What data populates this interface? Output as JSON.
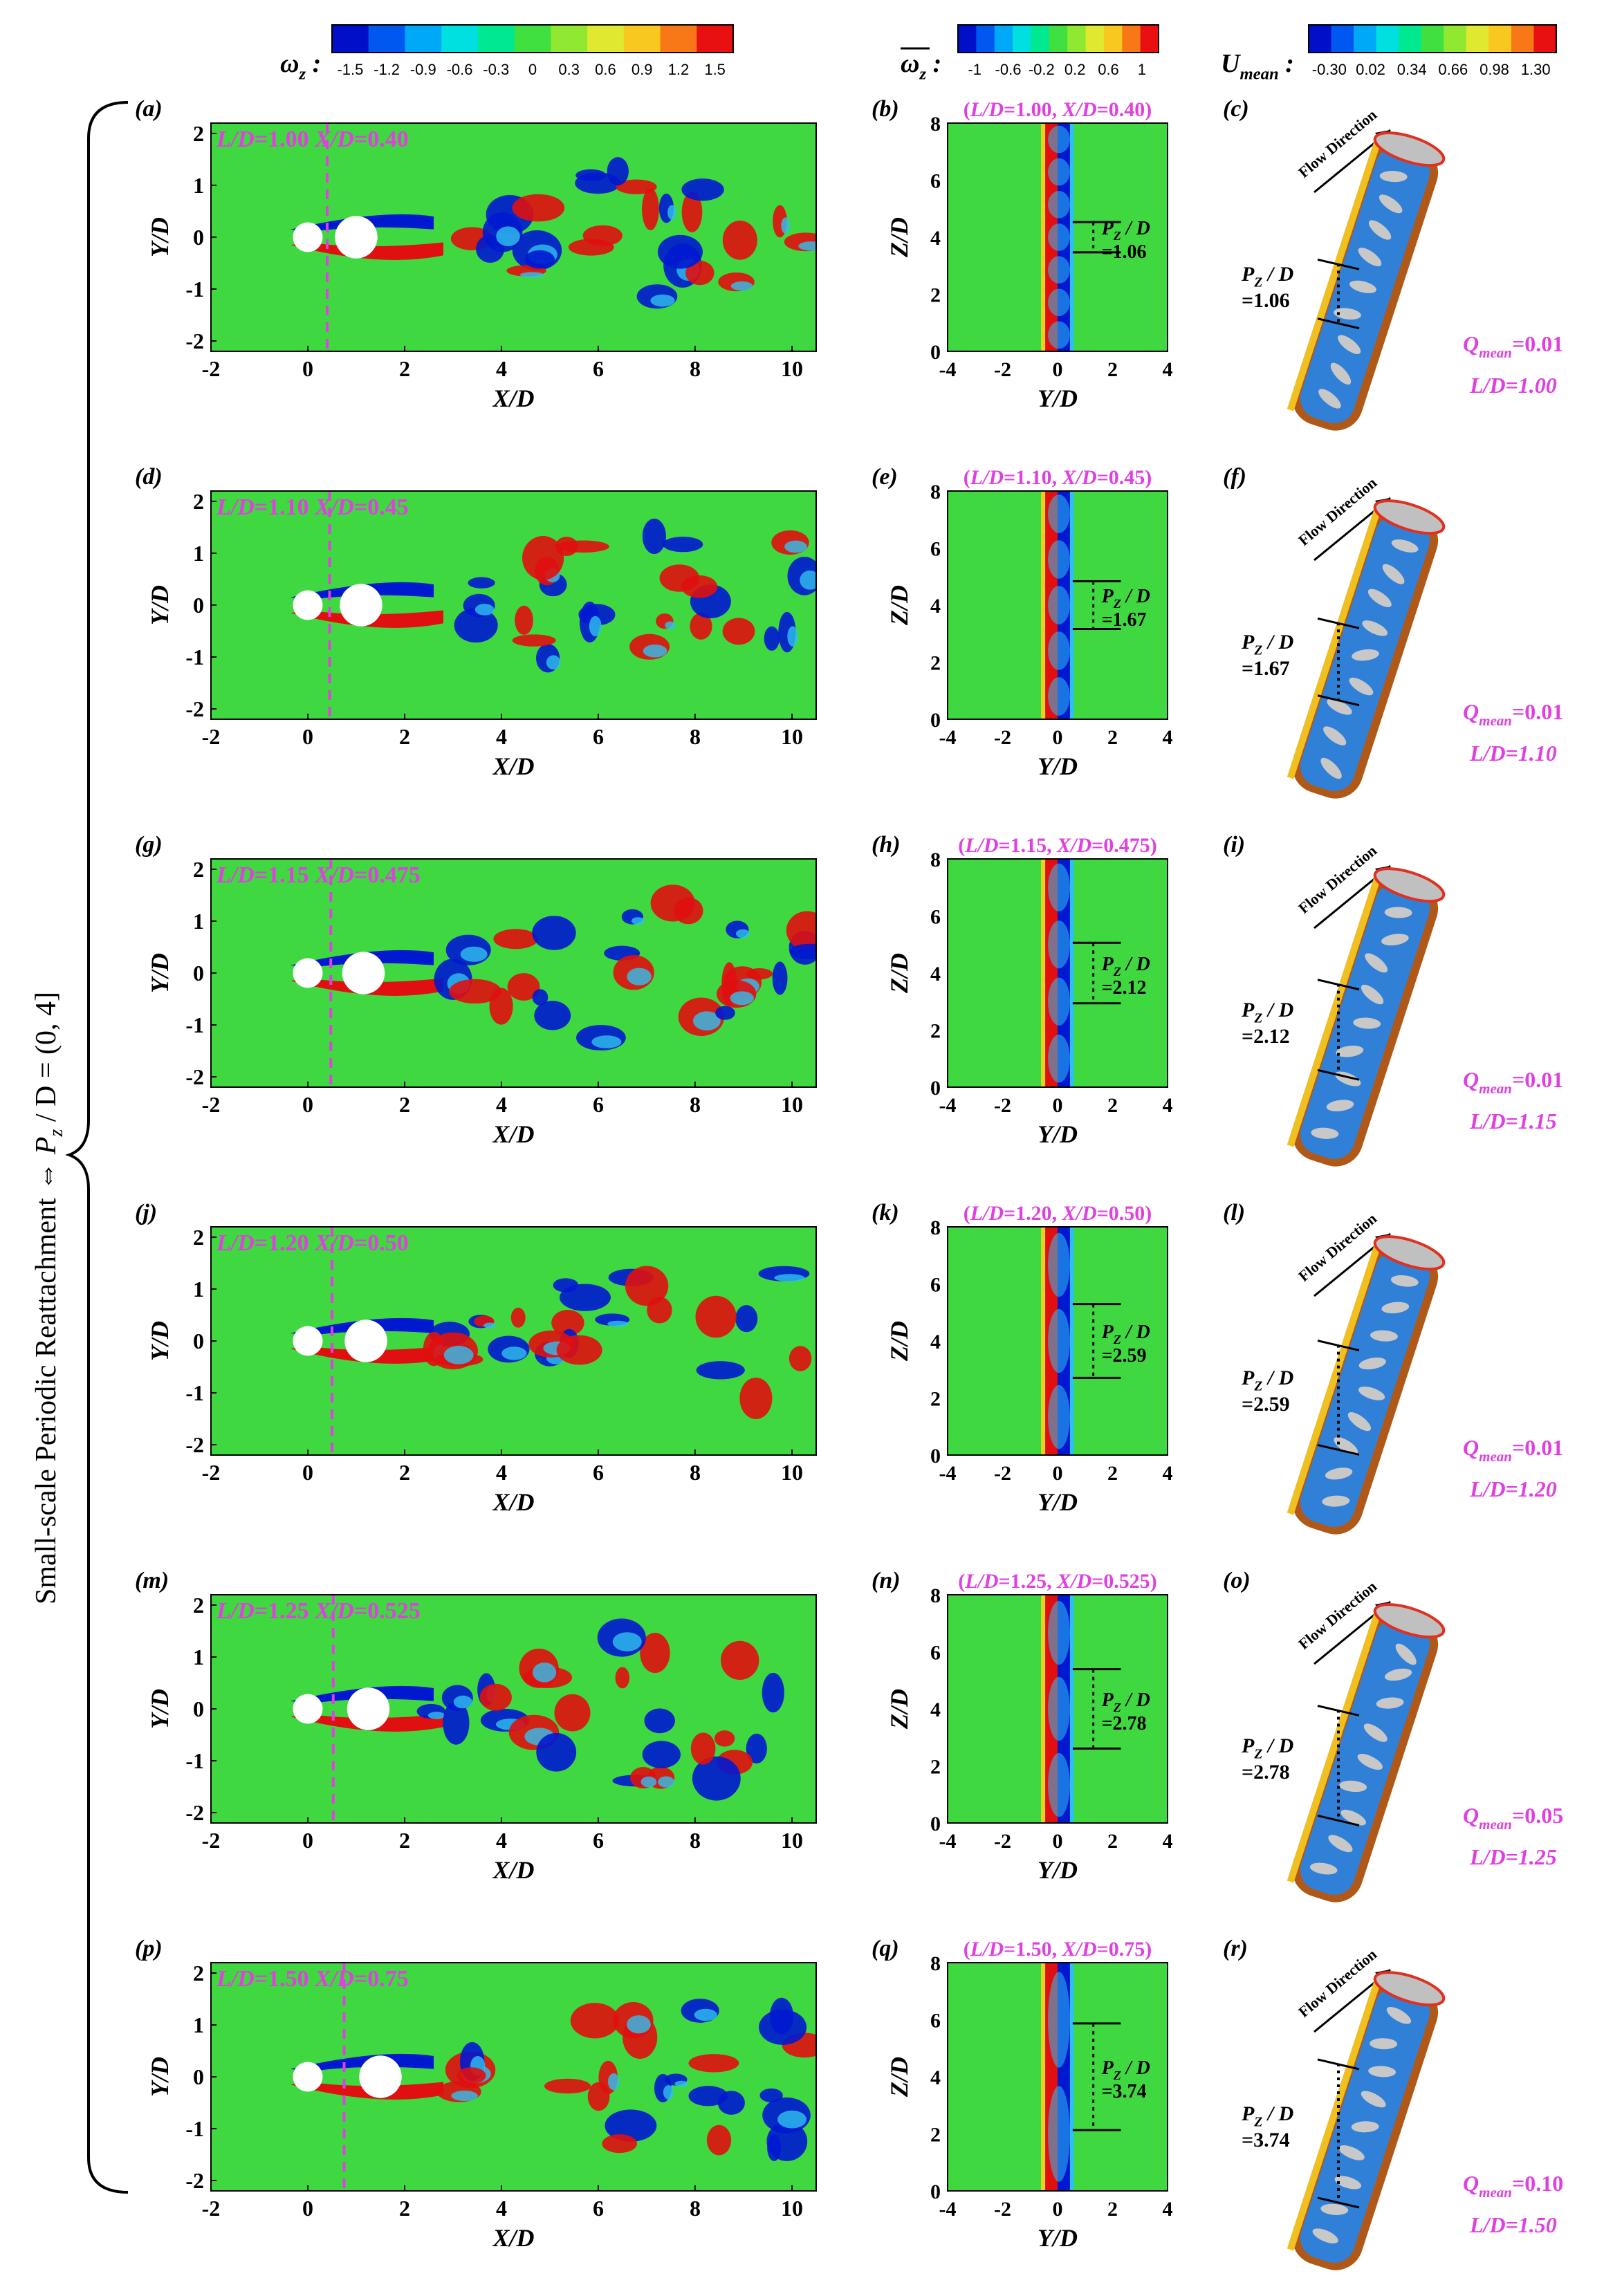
{
  "colorbars": [
    {
      "label": "ω",
      "sub": "z",
      "overbar": false,
      "ticks": [
        "-1.5",
        "-1.2",
        "-0.9",
        "-0.6",
        "-0.3",
        "0",
        "0.3",
        "0.6",
        "0.9",
        "1.2",
        "1.5"
      ]
    },
    {
      "label": "ω",
      "sub": "z",
      "overbar": true,
      "ticks": [
        "-1",
        "-0.6",
        "-0.2",
        "0.2",
        "0.6",
        "1"
      ]
    },
    {
      "label": "U",
      "sub": "mean",
      "overbar": false,
      "ticks": [
        "-0.30",
        "0.02",
        "0.34",
        "0.66",
        "0.98",
        "1.30"
      ]
    }
  ],
  "colorbar_colors": [
    "#0010c8",
    "#0058f0",
    "#00a8f8",
    "#00e0e0",
    "#00e890",
    "#40e040",
    "#90e830",
    "#e0e830",
    "#f8c820",
    "#f87818",
    "#e81010"
  ],
  "side_label": {
    "text": "Small-scale Periodic Reattachment",
    "arrow": "⇔",
    "math_P": "P",
    "math_sub": "z",
    "math_rest": " / D = (0, 4]"
  },
  "left_axes": {
    "xlabel": "X/D",
    "ylabel": "Y/D",
    "x": [
      -2,
      10.5
    ],
    "y": [
      -2.2,
      2.2
    ],
    "xticks": [
      -2,
      0,
      2,
      4,
      6,
      8,
      10
    ],
    "yticks": [
      -2,
      -1,
      0,
      1,
      2
    ]
  },
  "mid_axes": {
    "xlabel": "Y/D",
    "ylabel": "Z/D",
    "x": [
      -4,
      4
    ],
    "y": [
      0,
      8
    ],
    "xticks": [
      -4,
      -2,
      0,
      2,
      4
    ],
    "yticks": [
      0,
      2,
      4,
      6,
      8
    ]
  },
  "cols": {
    "flow_direction": "Flow Direction",
    "q_label": "Q",
    "q_sub": "mean",
    "pz_P": "P",
    "pz_sub": "Z",
    "pz_rest": " / D"
  },
  "rows": [
    {
      "tags": [
        "(a)",
        "(b)",
        "(c)"
      ],
      "ld": "1.00",
      "xd": "0.40",
      "xd_val": 0.4,
      "pz": "=1.06",
      "pz_val": 1.06,
      "q": "=0.01",
      "ld_text": "L/D=1.00",
      "n_bumps": 7
    },
    {
      "tags": [
        "(d)",
        "(e)",
        "(f)"
      ],
      "ld": "1.10",
      "xd": "0.45",
      "xd_val": 0.45,
      "pz": "=1.67",
      "pz_val": 1.67,
      "q": "=0.01",
      "ld_text": "L/D=1.10",
      "n_bumps": 5
    },
    {
      "tags": [
        "(g)",
        "(h)",
        "(i)"
      ],
      "ld": "1.15",
      "xd": "0.475",
      "xd_val": 0.475,
      "pz": "=2.12",
      "pz_val": 2.12,
      "q": "=0.01",
      "ld_text": "L/D=1.15",
      "n_bumps": 4
    },
    {
      "tags": [
        "(j)",
        "(k)",
        "(l)"
      ],
      "ld": "1.20",
      "xd": "0.50",
      "xd_val": 0.5,
      "pz": "=2.59",
      "pz_val": 2.59,
      "q": "=0.01",
      "ld_text": "L/D=1.20",
      "n_bumps": 3
    },
    {
      "tags": [
        "(m)",
        "(n)",
        "(o)"
      ],
      "ld": "1.25",
      "xd": "0.525",
      "xd_val": 0.525,
      "pz": "=2.78",
      "pz_val": 2.78,
      "q": "=0.05",
      "ld_text": "L/D=1.25",
      "n_bumps": 3
    },
    {
      "tags": [
        "(p)",
        "(q)",
        "(r)"
      ],
      "ld": "1.50",
      "xd": "0.75",
      "xd_val": 0.75,
      "pz": "=3.74",
      "pz_val": 3.74,
      "q": "=0.10",
      "ld_text": "L/D=1.50",
      "n_bumps": 2
    }
  ]
}
